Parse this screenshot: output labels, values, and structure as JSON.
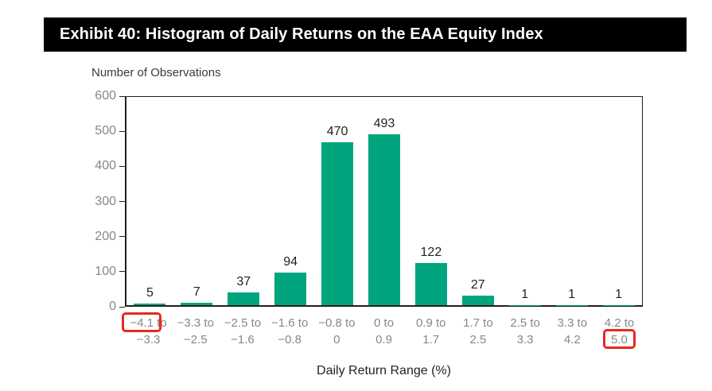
{
  "header": {
    "title": "Exhibit 40: Histogram of Daily Returns on the EAA Equity Index"
  },
  "colors": {
    "bar_fill": "#00A57E",
    "highlight_red": "#E8291D",
    "axis_text_gray": "#85878A",
    "dark_text": "#231F20",
    "header_bg": "#000000",
    "header_text": "#FFFFFF"
  },
  "chart_data": {
    "type": "bar",
    "title": "Exhibit 40: Histogram of Daily Returns on the EAA Equity Index",
    "ylabel": "Number of Observations",
    "xlabel": "Daily Return Range (%)",
    "ylim": [
      0,
      600
    ],
    "yticks": [
      600,
      500,
      400,
      300,
      200,
      100,
      0
    ],
    "grid": false,
    "legend": false,
    "bar_value_labels_shown": true,
    "categories": [
      "−4.1 to −3.3",
      "−3.3 to −2.5",
      "−2.5 to −1.6",
      "−1.6 to −0.8",
      "−0.8 to 0",
      "0 to 0.9",
      "0.9 to 1.7",
      "1.7 to 2.5",
      "2.5 to 3.3",
      "3.3 to 4.2",
      "4.2 to 5.0"
    ],
    "values": [
      5,
      7,
      37,
      94,
      470,
      493,
      122,
      27,
      1,
      1,
      1
    ],
    "highlights": [
      {
        "category_index": 0,
        "word": "−4.1"
      },
      {
        "category_index": 10,
        "word": "5.0"
      }
    ]
  }
}
